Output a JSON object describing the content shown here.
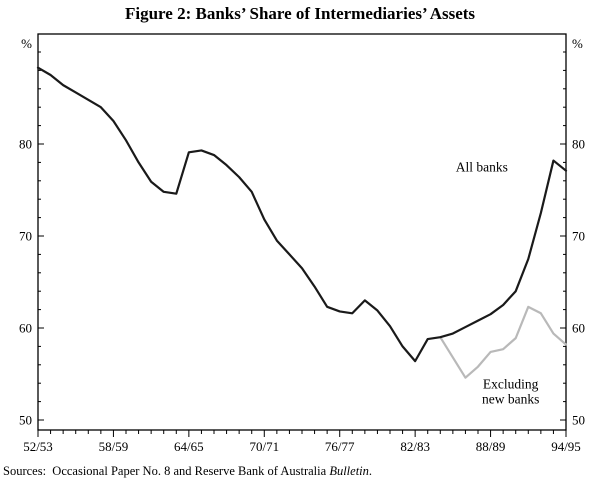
{
  "figure": {
    "title": "Figure 2: Banks’ Share of Intermediaries’ Assets"
  },
  "sources": {
    "prefix": "Sources:  Occasional Paper No. 8 and Reserve Bank of Australia ",
    "italic": "Bulletin",
    "suffix": "."
  },
  "chart_data": {
    "type": "line",
    "title": "Figure 2: Banks’ Share of Intermediaries’ Assets",
    "xlabel": "",
    "ylabel": "%",
    "grid": false,
    "legend_position": "inline-annotations",
    "axis": {
      "unit": "%",
      "ymin": 50,
      "ymax": 90,
      "yticks": [
        50,
        60,
        70,
        80
      ],
      "minor_step": 2,
      "x_label_every": 6
    },
    "x_categories": [
      "52/53",
      "53/54",
      "54/55",
      "55/56",
      "56/57",
      "57/58",
      "58/59",
      "59/60",
      "60/61",
      "61/62",
      "62/63",
      "63/64",
      "64/65",
      "65/66",
      "66/67",
      "67/68",
      "68/69",
      "69/70",
      "70/71",
      "71/72",
      "72/73",
      "73/74",
      "74/75",
      "75/76",
      "76/77",
      "77/78",
      "78/79",
      "79/80",
      "80/81",
      "81/82",
      "82/83",
      "83/84",
      "84/85",
      "85/86",
      "86/87",
      "87/88",
      "88/89",
      "89/90",
      "90/91",
      "91/92",
      "92/93",
      "93/94",
      "94/95"
    ],
    "x_tick_labels": [
      "52/53",
      "58/59",
      "64/65",
      "70/71",
      "76/77",
      "82/83",
      "88/89",
      "94/95"
    ],
    "series": [
      {
        "name": "All banks",
        "color": "#1a1a1a",
        "width": 2.2,
        "start_index": 0,
        "values": [
          88.3,
          87.5,
          86.4,
          85.6,
          84.8,
          84.0,
          82.5,
          80.4,
          78.0,
          75.9,
          74.8,
          74.6,
          79.1,
          79.3,
          78.8,
          77.7,
          76.4,
          74.8,
          71.8,
          69.5,
          68.0,
          66.5,
          64.5,
          62.3,
          61.8,
          61.6,
          63.0,
          61.9,
          60.2,
          58.0,
          56.4,
          58.8,
          59.0,
          59.4,
          60.1,
          60.8,
          61.5,
          62.5,
          64.0,
          67.5,
          72.5,
          78.2,
          77.1
        ]
      },
      {
        "name": "Excluding new banks",
        "color": "#b9b9b9",
        "width": 2.2,
        "start_index": 32,
        "values": [
          59.0,
          56.8,
          54.6,
          55.8,
          57.4,
          57.7,
          58.9,
          62.3,
          61.6,
          59.4,
          58.2
        ]
      }
    ],
    "annotations": [
      {
        "text": "All banks",
        "x": 35.3,
        "y": 77.0,
        "anchor": "middle"
      },
      {
        "text": "Excluding\nnew banks",
        "x": 37.6,
        "y": 53.4,
        "anchor": "middle"
      }
    ]
  }
}
